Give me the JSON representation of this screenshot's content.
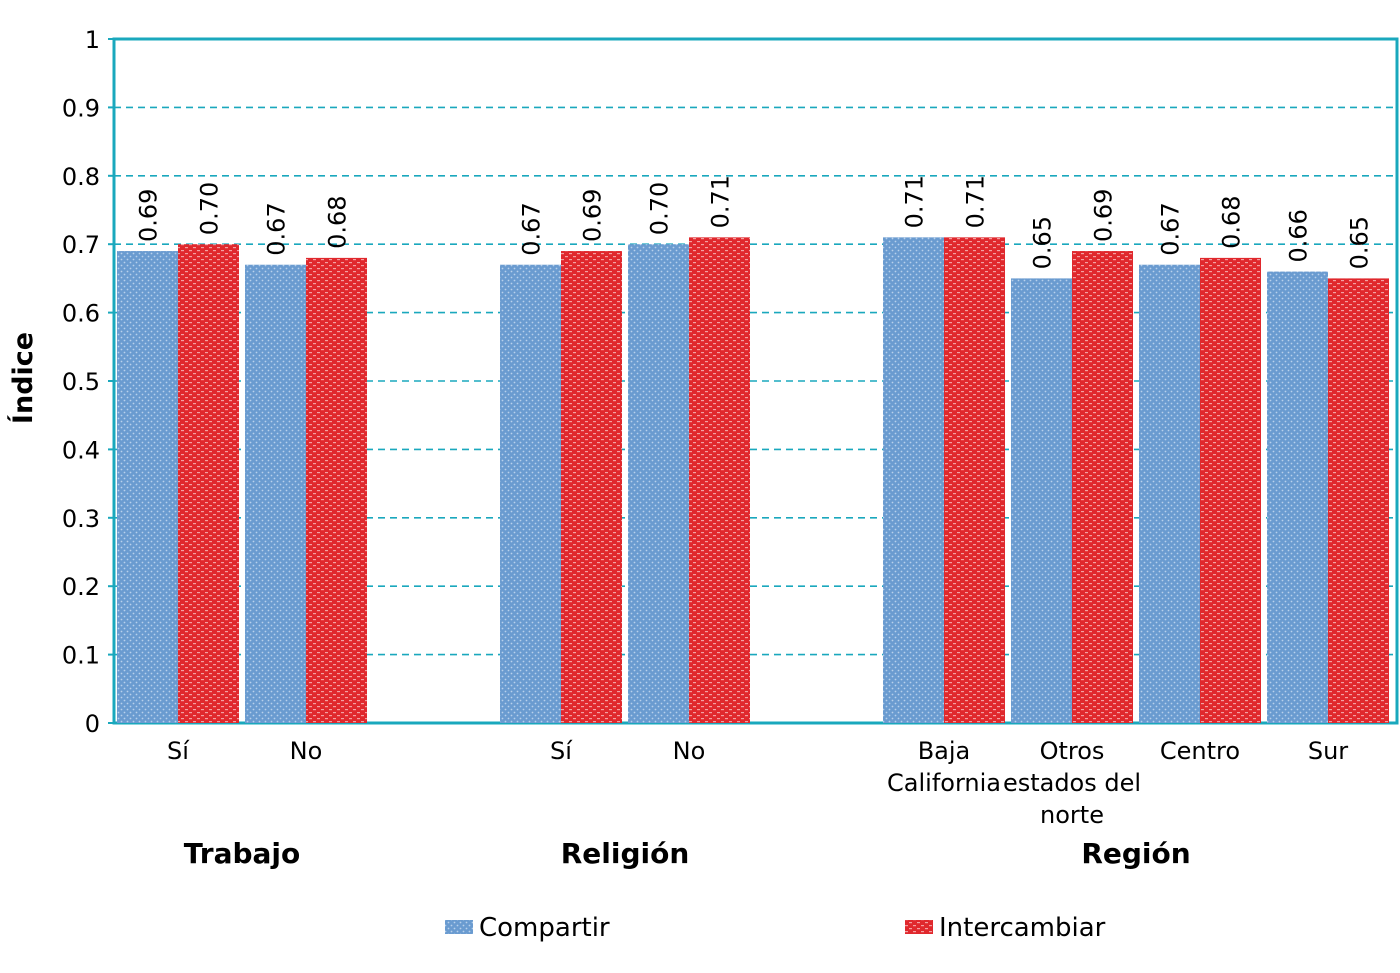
{
  "chart_data": {
    "type": "bar",
    "ylabel": "Índice",
    "ylim": [
      0,
      1
    ],
    "yticks": [
      "0",
      "0.1",
      "0.2",
      "0.3",
      "0.4",
      "0.5",
      "0.6",
      "0.7",
      "0.8",
      "0.9",
      "1"
    ],
    "grid": true,
    "legend_position": "bottom",
    "groups": [
      {
        "name": "Trabajo",
        "categories": [
          {
            "label": [
              "Sí"
            ],
            "values": [
              0.69,
              0.7
            ]
          },
          {
            "label": [
              "No"
            ],
            "values": [
              0.67,
              0.68
            ]
          }
        ]
      },
      {
        "name": "Religión",
        "categories": [
          {
            "label": [
              "Sí"
            ],
            "values": [
              0.67,
              0.69
            ]
          },
          {
            "label": [
              "No"
            ],
            "values": [
              0.7,
              0.71
            ]
          }
        ]
      },
      {
        "name": "Región",
        "categories": [
          {
            "label": [
              "Baja",
              "California"
            ],
            "values": [
              0.71,
              0.71
            ]
          },
          {
            "label": [
              "Otros",
              "estados del",
              "norte"
            ],
            "values": [
              0.65,
              0.69
            ]
          },
          {
            "label": [
              "Centro"
            ],
            "values": [
              0.67,
              0.68
            ]
          },
          {
            "label": [
              "Sur"
            ],
            "values": [
              0.66,
              0.65
            ]
          }
        ]
      }
    ],
    "series": [
      {
        "name": "Compartir",
        "color": "#6a9bd0"
      },
      {
        "name": "Intercambiar",
        "color": "#e0282d"
      }
    ],
    "colors": {
      "frame": "#1aa8bd",
      "grid": "#1aa8bd"
    }
  }
}
